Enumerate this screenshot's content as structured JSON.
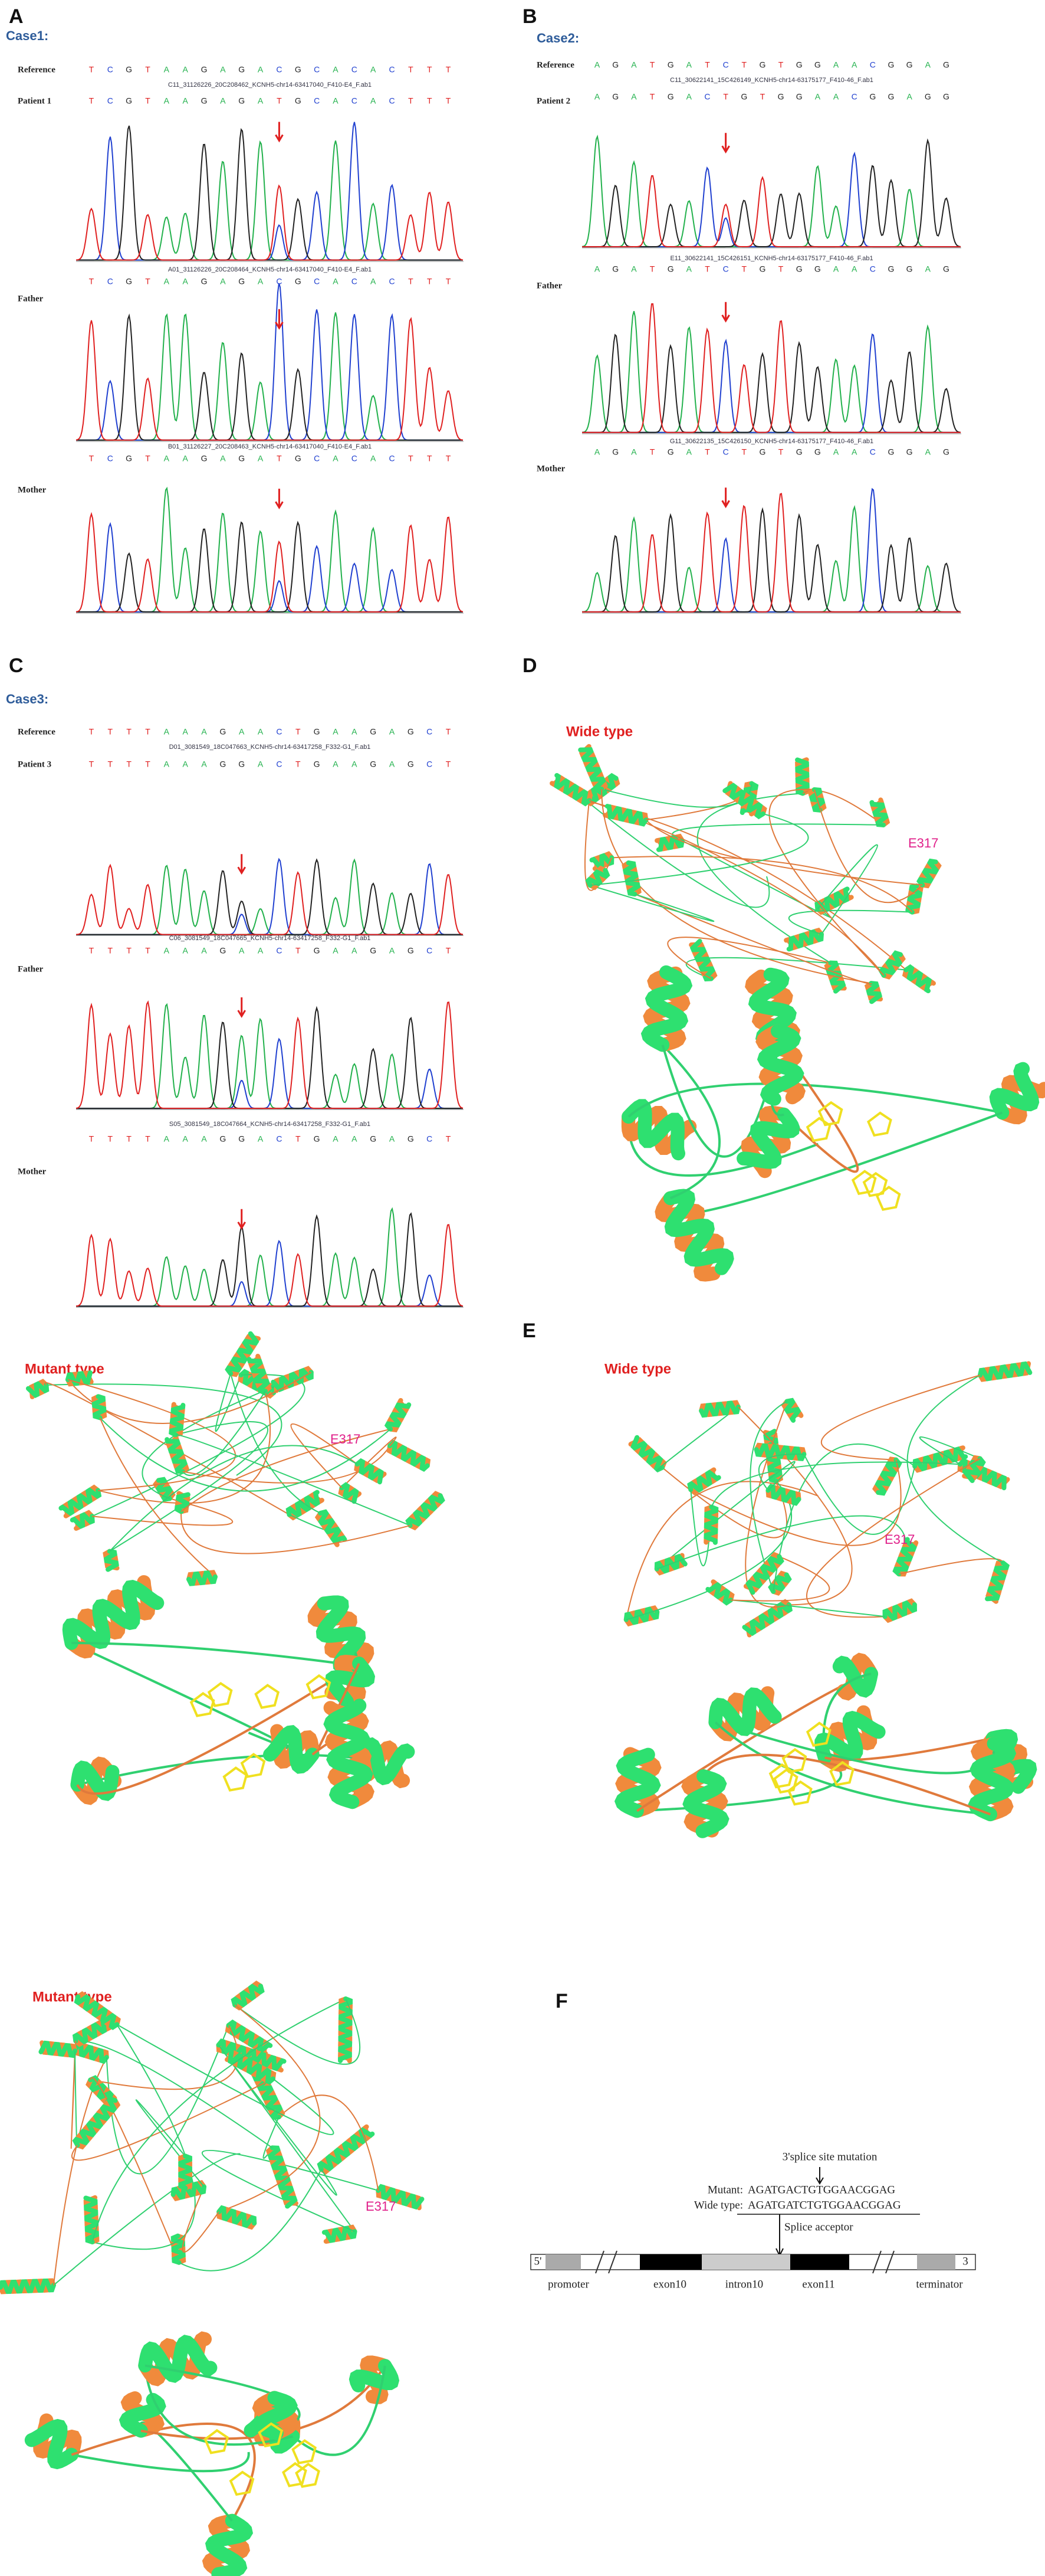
{
  "panel_labels": [
    "A",
    "B",
    "C",
    "D",
    "E",
    "F"
  ],
  "cases": [
    {
      "title": "Case1:",
      "reference": {
        "label": "Reference",
        "sequence": [
          "T",
          "C",
          "G",
          "T",
          "A",
          "A",
          "G",
          "A",
          "G",
          "A",
          "C",
          "G",
          "C",
          "A",
          "C",
          "A",
          "C",
          "T",
          "T",
          "T"
        ]
      },
      "samples": [
        {
          "label": "Patient 1",
          "file": "C11_31126226_20C208462_KCNH5-chr14-63417040_F410-E4_F.ab1",
          "sequence": [
            "T",
            "C",
            "G",
            "T",
            "A",
            "A",
            "G",
            "A",
            "G",
            "A",
            "T",
            "G",
            "C",
            "A",
            "C",
            "A",
            "C",
            "T",
            "T",
            "T"
          ]
        },
        {
          "label": "Father",
          "file": "A01_31126226_20C208464_KCNH5-chr14-63417040_F410-E4_F.ab1",
          "sequence": [
            "T",
            "C",
            "G",
            "T",
            "A",
            "A",
            "G",
            "A",
            "G",
            "A",
            "C",
            "G",
            "C",
            "A",
            "C",
            "A",
            "C",
            "T",
            "T",
            "T"
          ]
        },
        {
          "label": "Mother",
          "file": "B01_31126227_20C208463_KCNH5-chr14-63417040_F410-E4_F.ab1",
          "sequence": [
            "T",
            "C",
            "G",
            "T",
            "A",
            "A",
            "G",
            "A",
            "G",
            "A",
            "T",
            "G",
            "C",
            "A",
            "C",
            "A",
            "C",
            "T",
            "T",
            "T"
          ]
        }
      ]
    },
    {
      "title": "Case2:",
      "reference": {
        "label": "Reference",
        "sequence": [
          "A",
          "G",
          "A",
          "T",
          "G",
          "A",
          "T",
          "C",
          "T",
          "G",
          "T",
          "G",
          "G",
          "A",
          "A",
          "C",
          "G",
          "G",
          "A",
          "G"
        ]
      },
      "samples": [
        {
          "label": "Patient 2",
          "file": "C11_30622141_15C426149_KCNH5-chr14-63175177_F410-46_F.ab1",
          "sequence": [
            "A",
            "G",
            "A",
            "T",
            "G",
            "A",
            "C",
            "T",
            "G",
            "T",
            "G",
            "G",
            "A",
            "A",
            "C",
            "G",
            "G",
            "A",
            "G",
            "G"
          ]
        },
        {
          "label": "Father",
          "file": "E11_30622141_15C426151_KCNH5-chr14-63175177_F410-46_F.ab1",
          "sequence": [
            "A",
            "G",
            "A",
            "T",
            "G",
            "A",
            "T",
            "C",
            "T",
            "G",
            "T",
            "G",
            "G",
            "A",
            "A",
            "C",
            "G",
            "G",
            "A",
            "G"
          ]
        },
        {
          "label": "Mother",
          "file": "G11_30622135_15C426150_KCNH5-chr14-63175177_F410-46_F.ab1",
          "sequence": [
            "A",
            "G",
            "A",
            "T",
            "G",
            "A",
            "T",
            "C",
            "T",
            "G",
            "T",
            "G",
            "G",
            "A",
            "A",
            "C",
            "G",
            "G",
            "A",
            "G"
          ]
        }
      ]
    },
    {
      "title": "Case3:",
      "reference": {
        "label": "Reference",
        "sequence": [
          "T",
          "T",
          "T",
          "T",
          "A",
          "A",
          "A",
          "G",
          "A",
          "A",
          "C",
          "T",
          "G",
          "A",
          "A",
          "G",
          "A",
          "G",
          "C",
          "T"
        ]
      },
      "samples": [
        {
          "label": "Patient 3",
          "file": "D01_3081549_18C047663_KCNH5-chr14-63417258_F332-G1_F.ab1",
          "sequence": [
            "T",
            "T",
            "T",
            "T",
            "A",
            "A",
            "A",
            "G",
            "G",
            "A",
            "C",
            "T",
            "G",
            "A",
            "A",
            "G",
            "A",
            "G",
            "C",
            "T"
          ]
        },
        {
          "label": "Father",
          "file": "C06_3081549_18C047665_KCNH5-chr14-63417258_F332-G1_F.ab1",
          "sequence": [
            "T",
            "T",
            "T",
            "T",
            "A",
            "A",
            "A",
            "G",
            "A",
            "A",
            "C",
            "T",
            "G",
            "A",
            "A",
            "G",
            "A",
            "G",
            "C",
            "T"
          ]
        },
        {
          "label": "Mother",
          "file": "S05_3081549_18C047664_KCNH5-chr14-63417258_F332-G1_F.ab1",
          "sequence": [
            "T",
            "T",
            "T",
            "T",
            "A",
            "A",
            "A",
            "G",
            "G",
            "A",
            "C",
            "T",
            "G",
            "A",
            "A",
            "G",
            "A",
            "G",
            "C",
            "T"
          ]
        }
      ]
    }
  ],
  "structures": [
    {
      "title": "Wide type",
      "site": "E317"
    },
    {
      "title": "Mutant type",
      "site": "E317"
    },
    {
      "title": "Wide type",
      "site": "E317"
    },
    {
      "title": "Mutant type",
      "site": "E317"
    }
  ],
  "splice": {
    "heading": "3'splice site mutation",
    "mutant_label": "Mutant:",
    "mutant_seq": "AGATGACTGTGGAACGGAG",
    "wild_label": "Wide type:",
    "wild_seq": "AGATGATCTGTGGAACGGAG",
    "acceptor": "Splice acceptor",
    "five": "5'",
    "three": "3",
    "regions": [
      "promoter",
      "exon10",
      "intron10",
      "exon11",
      "terminator"
    ]
  }
}
